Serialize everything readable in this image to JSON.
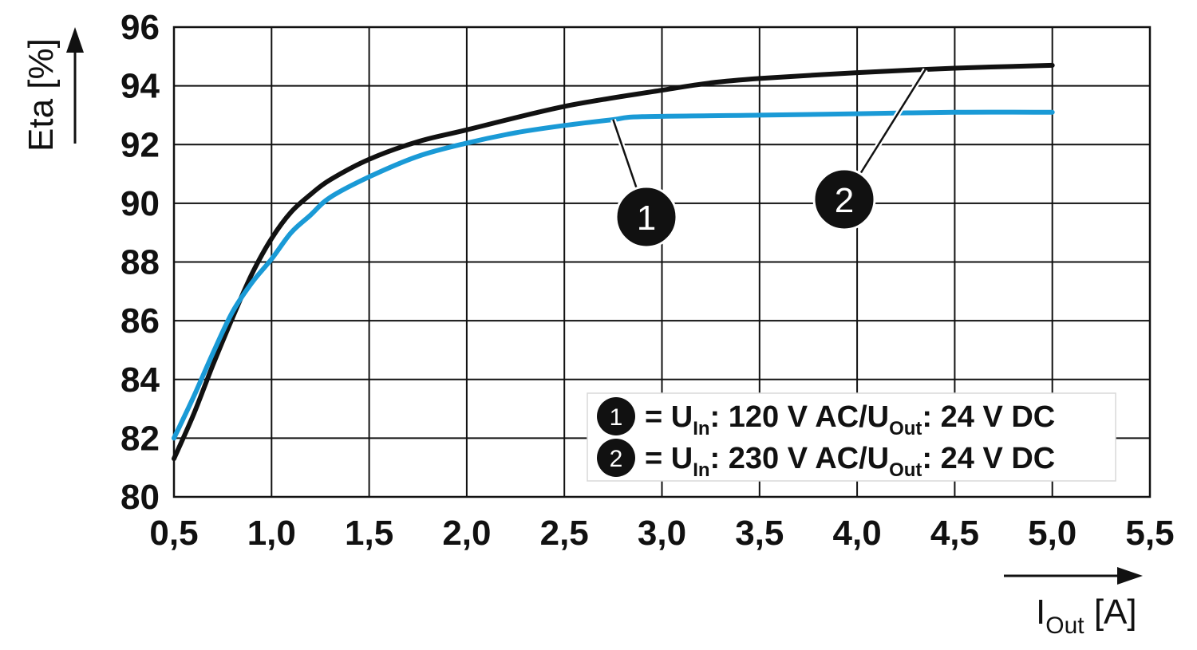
{
  "chart_data": {
    "type": "line",
    "xlabel": {
      "main": "I",
      "sub": "Out",
      "unit": " [A]"
    },
    "ylabel": "Eta [%]",
    "xlim": [
      0.5,
      5.5
    ],
    "ylim": [
      80,
      96
    ],
    "x_ticks": [
      0.5,
      1.0,
      1.5,
      2.0,
      2.5,
      3.0,
      3.5,
      4.0,
      4.5,
      5.0,
      5.5
    ],
    "x_tick_labels": [
      "0,5",
      "1,0",
      "1,5",
      "2,0",
      "2,5",
      "3,0",
      "3,5",
      "4,0",
      "4,5",
      "5,0",
      "5,5"
    ],
    "y_ticks": [
      80,
      82,
      84,
      86,
      88,
      90,
      92,
      94,
      96
    ],
    "y_tick_labels": [
      "80",
      "82",
      "84",
      "86",
      "88",
      "90",
      "92",
      "94",
      "96"
    ],
    "grid": true,
    "legend_position": "bottom-right",
    "series": [
      {
        "marker": "1",
        "color": "#1a9ad6",
        "x": [
          0.5,
          0.6,
          0.7,
          0.8,
          0.9,
          1.0,
          1.1,
          1.2,
          1.3,
          1.5,
          1.75,
          2.0,
          2.25,
          2.5,
          2.75,
          2.9,
          3.5,
          4.0,
          4.5,
          5.0
        ],
        "y": [
          82.0,
          83.4,
          84.9,
          86.3,
          87.3,
          88.1,
          89.0,
          89.6,
          90.2,
          90.9,
          91.6,
          92.05,
          92.4,
          92.65,
          92.85,
          92.95,
          93.0,
          93.05,
          93.1,
          93.1
        ]
      },
      {
        "marker": "2",
        "color": "#111111",
        "x": [
          0.5,
          0.6,
          0.7,
          0.8,
          0.9,
          1.0,
          1.1,
          1.2,
          1.3,
          1.5,
          1.75,
          2.0,
          2.5,
          3.0,
          3.25,
          3.5,
          4.0,
          4.5,
          5.0
        ],
        "y": [
          81.3,
          82.8,
          84.5,
          86.1,
          87.6,
          88.8,
          89.7,
          90.3,
          90.8,
          91.5,
          92.1,
          92.5,
          93.3,
          93.85,
          94.1,
          94.25,
          94.45,
          94.6,
          94.7
        ]
      }
    ],
    "callouts": [
      {
        "label": "1",
        "series": 0,
        "at_x": 2.75
      },
      {
        "label": "2",
        "series": 1,
        "at_x": 4.35
      }
    ],
    "legend": [
      {
        "badge": "1",
        "eq": "= U",
        "in_sub": "In",
        "mid": ": 120 V AC/U",
        "out_sub": "Out",
        "end": ": 24 V DC"
      },
      {
        "badge": "2",
        "eq": "= U",
        "in_sub": "In",
        "mid": ": 230 V AC/U",
        "out_sub": "Out",
        "end": ": 24 V DC"
      }
    ]
  }
}
